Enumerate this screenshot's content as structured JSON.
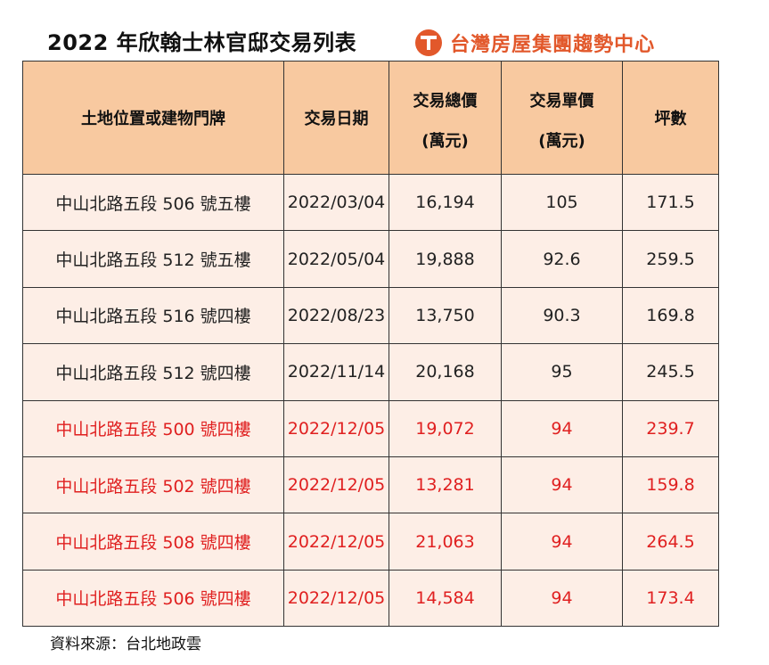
{
  "title": "2022 年欣翰士林官邸交易列表",
  "brand": {
    "name": "台灣房屋集團趨勢中心",
    "logo_icon": "taiwan-realty-logo-icon",
    "color": "#e2582b"
  },
  "table": {
    "headers": {
      "address": "土地位置或建物門牌",
      "date": "交易日期",
      "total_line1": "交易總價",
      "total_line2": "(萬元)",
      "unit_line1": "交易單價",
      "unit_line2": "(萬元)",
      "area": "坪數"
    },
    "header_color": "#f8c9a0",
    "row_color": "#fdeee6",
    "highlight_color": "#e02020",
    "rows": [
      {
        "address": "中山北路五段 506 號五樓",
        "date": "2022/03/04",
        "total": "16,194",
        "unit": "105",
        "area": "171.5",
        "highlight": false
      },
      {
        "address": "中山北路五段 512 號五樓",
        "date": "2022/05/04",
        "total": "19,888",
        "unit": "92.6",
        "area": "259.5",
        "highlight": false
      },
      {
        "address": "中山北路五段 516 號四樓",
        "date": "2022/08/23",
        "total": "13,750",
        "unit": "90.3",
        "area": "169.8",
        "highlight": false
      },
      {
        "address": "中山北路五段 512 號四樓",
        "date": "2022/11/14",
        "total": "20,168",
        "unit": "95",
        "area": "245.5",
        "highlight": false
      },
      {
        "address": "中山北路五段 500 號四樓",
        "date": "2022/12/05",
        "total": "19,072",
        "unit": "94",
        "area": "239.7",
        "highlight": true
      },
      {
        "address": "中山北路五段 502 號四樓",
        "date": "2022/12/05",
        "total": "13,281",
        "unit": "94",
        "area": "159.8",
        "highlight": true
      },
      {
        "address": "中山北路五段 508 號四樓",
        "date": "2022/12/05",
        "total": "21,063",
        "unit": "94",
        "area": "264.5",
        "highlight": true
      },
      {
        "address": "中山北路五段 506 號四樓",
        "date": "2022/12/05",
        "total": "14,584",
        "unit": "94",
        "area": "173.4",
        "highlight": true
      }
    ]
  },
  "footnote": "資料來源：台北地政雲"
}
